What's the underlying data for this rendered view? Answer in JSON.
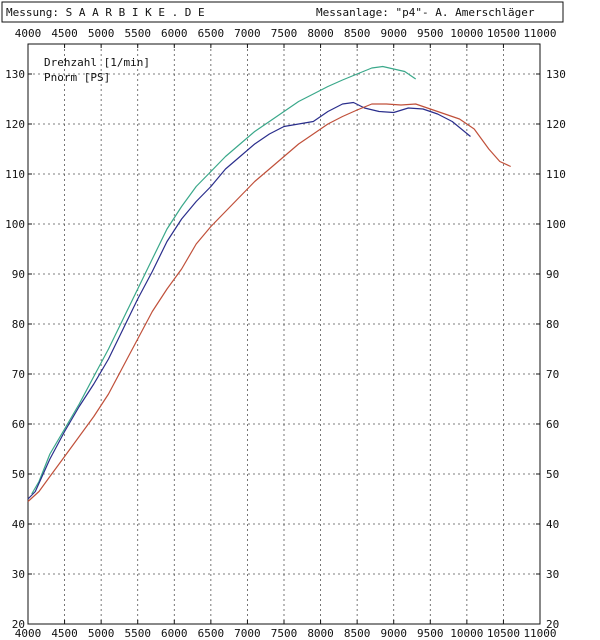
{
  "header": {
    "left": "Messung: S A A R B I K E . D E",
    "right": "Messanlage: \"p4\"- A. Amerschläger"
  },
  "chart_data": {
    "type": "line",
    "title": "",
    "xlabel": "",
    "ylabel": "",
    "xlim": [
      4000,
      11000
    ],
    "ylim": [
      20,
      135
    ],
    "x_ticks": [
      "4000",
      "4500",
      "5000",
      "5500",
      "6000",
      "6500",
      "7000",
      "7500",
      "8000",
      "8500",
      "9000",
      "9500",
      "10000",
      "10500",
      "11000"
    ],
    "y_ticks": [
      "20",
      "30",
      "40",
      "50",
      "60",
      "70",
      "80",
      "90",
      "100",
      "110",
      "120",
      "130"
    ],
    "grid": true,
    "legend_placement": "top-left",
    "legend_entries": [
      "Drehzahl [1/min]",
      "Pnorm [PS]"
    ],
    "series": [
      {
        "color": "#3aa88a",
        "x": [
          4050,
          4150,
          4300,
          4500,
          4700,
          4900,
          5100,
          5300,
          5500,
          5700,
          5900,
          6100,
          6300,
          6500,
          6700,
          6900,
          7100,
          7300,
          7500,
          7700,
          7900,
          8100,
          8300,
          8500,
          8700,
          8850,
          9000,
          9150,
          9300
        ],
        "y": [
          46,
          48.5,
          54,
          59,
          64,
          69.5,
          75,
          81,
          87,
          93,
          99,
          103.5,
          107.5,
          110.5,
          113.5,
          116,
          118.5,
          120.5,
          122.5,
          124.5,
          126,
          127.5,
          128.8,
          130,
          131.2,
          131.5,
          131,
          130.5,
          129
        ]
      },
      {
        "color": "#2a2e8c",
        "x": [
          4000,
          4100,
          4300,
          4500,
          4700,
          4900,
          5100,
          5300,
          5500,
          5700,
          5900,
          6100,
          6300,
          6500,
          6700,
          6900,
          7100,
          7300,
          7500,
          7700,
          7900,
          8100,
          8300,
          8450,
          8600,
          8800,
          9000,
          9200,
          9400,
          9600,
          9800,
          10050
        ],
        "y": [
          45,
          46.5,
          53,
          58.5,
          63.5,
          68,
          73,
          79,
          85,
          90.5,
          96.5,
          101,
          104.5,
          107.5,
          111,
          113.5,
          116,
          118,
          119.5,
          120,
          120.5,
          122.5,
          124,
          124.3,
          123.2,
          122.5,
          122.3,
          123.2,
          123,
          122,
          120.5,
          117.5
        ]
      },
      {
        "color": "#c0503a",
        "x": [
          4000,
          4150,
          4300,
          4500,
          4700,
          4900,
          5100,
          5300,
          5500,
          5700,
          5900,
          6100,
          6300,
          6500,
          6700,
          6900,
          7100,
          7300,
          7500,
          7700,
          7900,
          8100,
          8300,
          8500,
          8700,
          8900,
          9100,
          9300,
          9500,
          9700,
          9900,
          10100,
          10300,
          10450,
          10600
        ],
        "y": [
          44.5,
          46.5,
          49.5,
          53.5,
          57.5,
          61.5,
          66,
          71.5,
          77,
          82.5,
          87,
          91,
          96,
          99.5,
          102.5,
          105.5,
          108.5,
          111,
          113.5,
          116,
          118,
          120,
          121.5,
          122.8,
          124,
          124,
          123.8,
          124,
          123,
          122,
          121,
          119,
          115,
          112.5,
          111.5
        ]
      }
    ]
  }
}
